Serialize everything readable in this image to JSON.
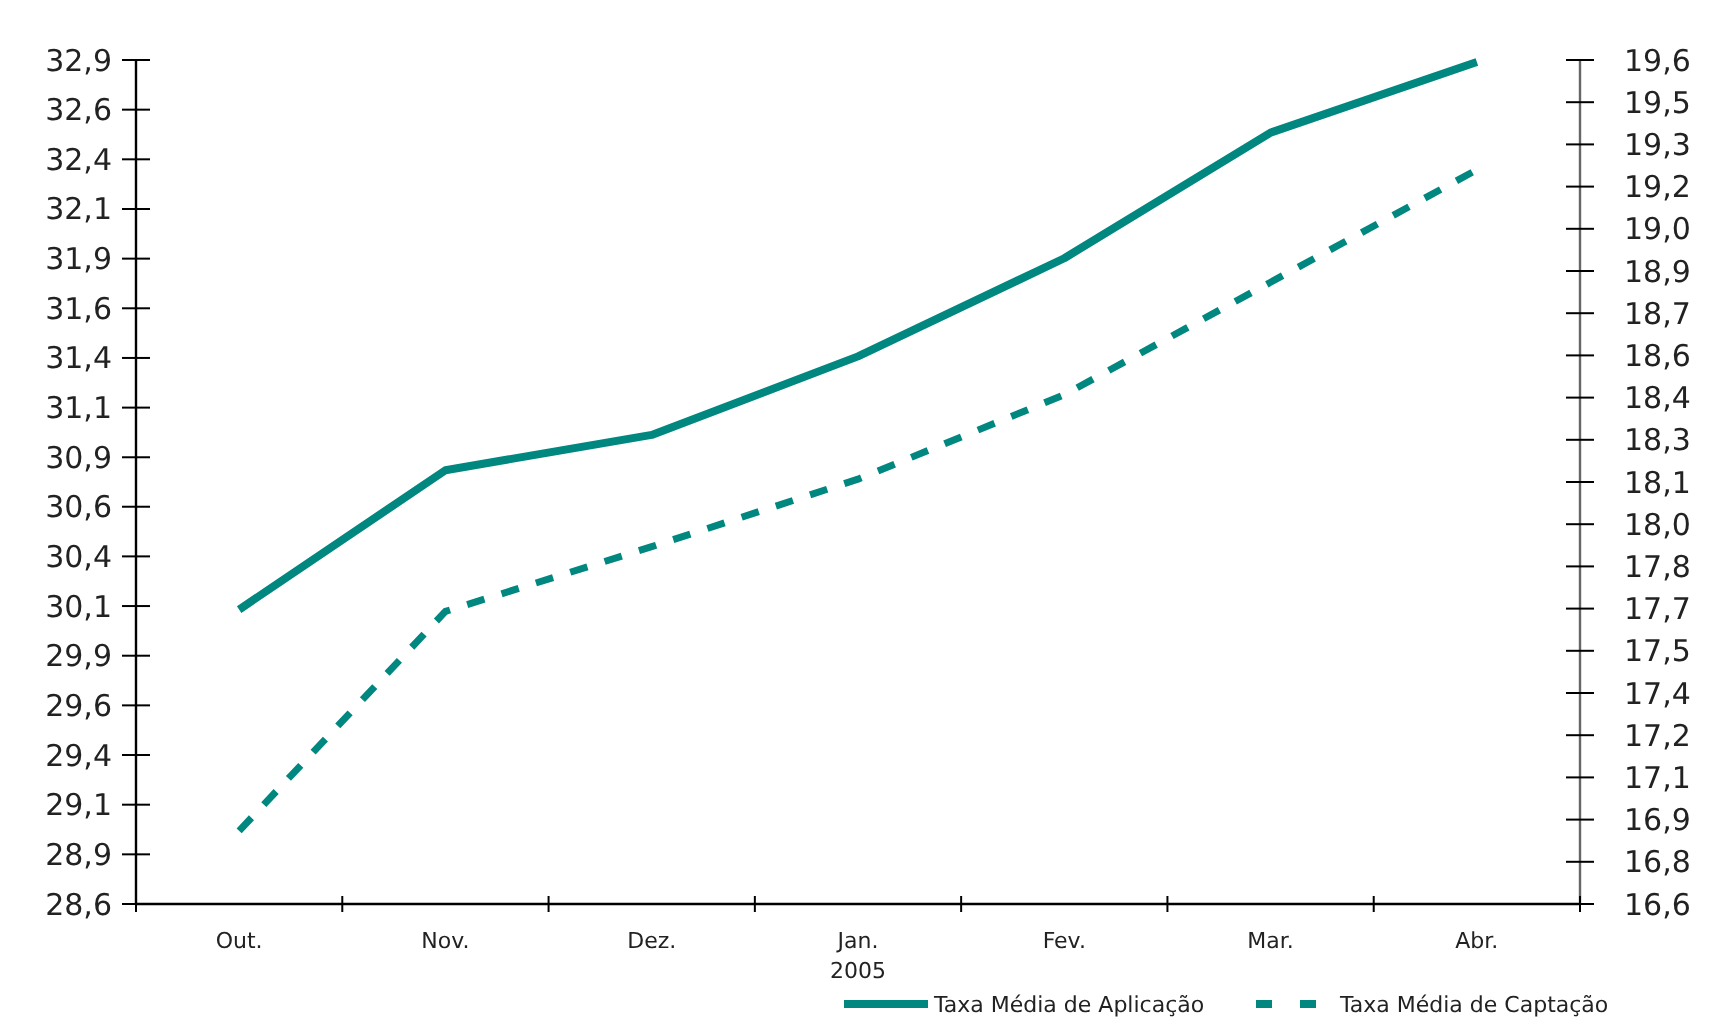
{
  "chart_data": {
    "type": "line",
    "categories": [
      "Out.",
      "Nov.",
      "Dez.",
      "Jan.\n2005",
      "Fev.",
      "Mar.",
      "Abr."
    ],
    "series": [
      {
        "name": "Taxa Média de Aplicação",
        "color": "#00877f",
        "line_style": "solid",
        "values": [
          30.1,
          30.81,
          30.99,
          31.39,
          31.89,
          32.53,
          32.89
        ]
      },
      {
        "name": "Taxa Média de Captação",
        "color": "#00877f",
        "line_style": "dashed",
        "axis": "y2",
        "values": [
          16.86,
          17.64,
          17.87,
          18.11,
          18.41,
          18.81,
          19.21
        ]
      }
    ],
    "ylim": [
      28.6,
      32.9
    ],
    "yticks": [
      {
        "value": 28.6,
        "label": "28,6"
      },
      {
        "value": 28.853,
        "label": "28,9"
      },
      {
        "value": 29.106,
        "label": "29,1"
      },
      {
        "value": 29.359,
        "label": "29,4"
      },
      {
        "value": 29.612,
        "label": "29,6"
      },
      {
        "value": 29.865,
        "label": "29,9"
      },
      {
        "value": 30.118,
        "label": "30,1"
      },
      {
        "value": 30.371,
        "label": "30,4"
      },
      {
        "value": 30.624,
        "label": "30,6"
      },
      {
        "value": 30.876,
        "label": "30,9"
      },
      {
        "value": 31.129,
        "label": "31,1"
      },
      {
        "value": 31.382,
        "label": "31,4"
      },
      {
        "value": 31.635,
        "label": "31,6"
      },
      {
        "value": 31.888,
        "label": "31,9"
      },
      {
        "value": 32.141,
        "label": "32,1"
      },
      {
        "value": 32.394,
        "label": "32,4"
      },
      {
        "value": 32.647,
        "label": "32,6"
      },
      {
        "value": 32.9,
        "label": "32,9"
      }
    ],
    "y2lim": [
      16.6,
      19.6
    ],
    "y2ticks": [
      {
        "value": 16.6,
        "label": "16,6"
      },
      {
        "value": 16.75,
        "label": "16,8"
      },
      {
        "value": 16.9,
        "label": "16,9"
      },
      {
        "value": 17.05,
        "label": "17,1"
      },
      {
        "value": 17.2,
        "label": "17,2"
      },
      {
        "value": 17.35,
        "label": "17,4"
      },
      {
        "value": 17.5,
        "label": "17,5"
      },
      {
        "value": 17.65,
        "label": "17,7"
      },
      {
        "value": 17.8,
        "label": "17,8"
      },
      {
        "value": 17.95,
        "label": "18,0"
      },
      {
        "value": 18.1,
        "label": "18,1"
      },
      {
        "value": 18.25,
        "label": "18,3"
      },
      {
        "value": 18.4,
        "label": "18,4"
      },
      {
        "value": 18.55,
        "label": "18,6"
      },
      {
        "value": 18.7,
        "label": "18,7"
      },
      {
        "value": 18.85,
        "label": "18,9"
      },
      {
        "value": 19.0,
        "label": "19,0"
      },
      {
        "value": 19.15,
        "label": "19,2"
      },
      {
        "value": 19.3,
        "label": "19,3"
      },
      {
        "value": 19.45,
        "label": "19,5"
      },
      {
        "value": 19.6,
        "label": "19,6"
      }
    ],
    "grid": false,
    "legend": "bottom right",
    "marker": "none"
  }
}
